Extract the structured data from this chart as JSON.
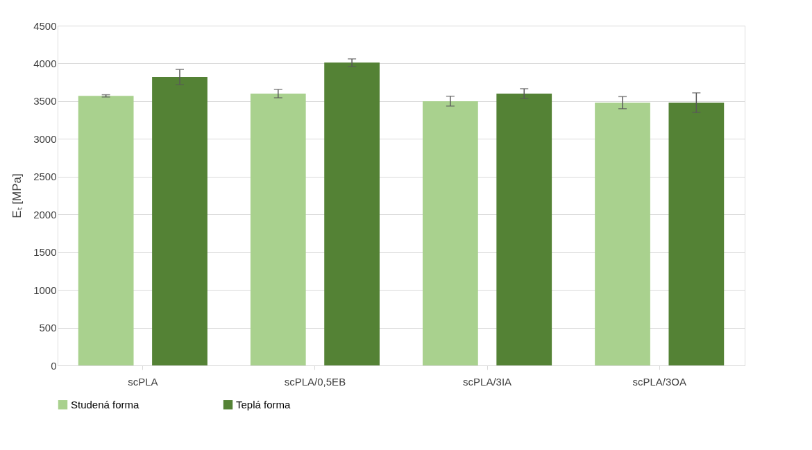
{
  "chart_data": {
    "type": "bar",
    "ylabel": "Eₜ [MPa]",
    "categories": [
      "scPLA",
      "scPLA/0,5EB",
      "scPLA/3IA",
      "scPLA/3OA"
    ],
    "series": [
      {
        "name": "Studená forma",
        "color": "#a9d18e",
        "values": [
          3570,
          3600,
          3500,
          3480
        ],
        "errors": [
          15,
          55,
          65,
          80
        ]
      },
      {
        "name": "Teplá forma",
        "color": "#548235",
        "values": [
          3820,
          4010,
          3600,
          3480
        ],
        "errors": [
          100,
          50,
          65,
          130
        ]
      }
    ],
    "ylim": [
      0,
      4500
    ],
    "yticks": [
      0,
      500,
      1000,
      1500,
      2000,
      2500,
      3000,
      3500,
      4000,
      4500
    ],
    "grid": "y",
    "legend": "bottom"
  }
}
